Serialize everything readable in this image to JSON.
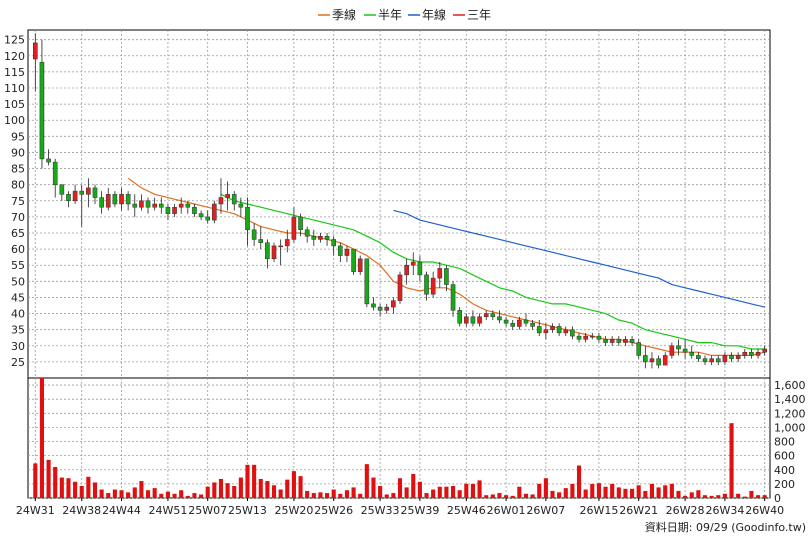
{
  "chart_data": [
    {
      "type": "candlestick",
      "title": "",
      "legend": {
        "placement": "top-center",
        "items": [
          {
            "name": "季線",
            "color": "#e07020"
          },
          {
            "name": "半年",
            "color": "#18c818"
          },
          {
            "name": "年線",
            "color": "#2060d0"
          },
          {
            "name": "三年",
            "color": "#e02020"
          }
        ]
      },
      "y_ticks": [
        25,
        30,
        35,
        40,
        45,
        50,
        55,
        60,
        65,
        70,
        75,
        80,
        85,
        90,
        95,
        100,
        105,
        110,
        115,
        120,
        125
      ],
      "ylim": [
        20,
        128
      ],
      "x_tick_labels": [
        "24W31",
        "24W38",
        "24W44",
        "24W51",
        "25W07",
        "25W13",
        "25W20",
        "25W26",
        "25W33",
        "25W39",
        "25W46",
        "26W01",
        "26W07",
        "26W15",
        "26W21",
        "26W28",
        "26W34",
        "26W40"
      ],
      "x_tick_index": [
        0,
        7,
        13,
        20,
        26,
        32,
        39,
        45,
        52,
        58,
        65,
        71,
        77,
        85,
        91,
        98,
        104,
        110
      ],
      "n_weeks": 111,
      "grid": true,
      "up_color": "#e02020",
      "down_color": "#18a818",
      "candles_ohlc": [
        [
          119,
          127,
          109,
          124
        ],
        [
          118,
          125,
          85,
          88
        ],
        [
          88,
          91,
          86,
          87
        ],
        [
          87,
          88,
          76,
          80
        ],
        [
          80,
          80,
          75,
          77
        ],
        [
          77,
          78,
          73,
          75
        ],
        [
          75,
          80,
          74,
          78
        ],
        [
          78,
          80,
          67,
          77
        ],
        [
          77,
          82,
          73,
          79
        ],
        [
          79,
          80,
          74,
          76
        ],
        [
          76,
          78,
          71,
          73
        ],
        [
          73,
          79,
          72,
          77
        ],
        [
          77,
          78,
          73,
          74
        ],
        [
          74,
          79,
          72,
          77
        ],
        [
          77,
          78,
          72,
          74
        ],
        [
          74,
          77,
          70,
          73
        ],
        [
          73,
          77,
          72,
          75
        ],
        [
          75,
          76,
          71,
          73
        ],
        [
          73,
          76,
          72,
          74
        ],
        [
          74,
          76,
          71,
          73
        ],
        [
          73,
          74,
          69,
          71
        ],
        [
          71,
          74,
          70,
          73
        ],
        [
          73,
          76,
          71,
          74
        ],
        [
          74,
          75,
          71,
          73
        ],
        [
          73,
          74,
          70,
          71
        ],
        [
          71,
          72,
          69,
          70
        ],
        [
          70,
          72,
          68,
          69
        ],
        [
          69,
          75,
          68,
          74
        ],
        [
          74,
          82,
          71,
          76
        ],
        [
          76,
          81,
          72,
          77
        ],
        [
          77,
          78,
          72,
          74
        ],
        [
          74,
          76,
          70,
          73
        ],
        [
          73,
          76,
          61,
          66
        ],
        [
          66,
          68,
          61,
          63
        ],
        [
          63,
          67,
          60,
          62
        ],
        [
          62,
          63,
          54,
          57
        ],
        [
          57,
          62,
          56,
          61
        ],
        [
          61,
          63,
          55,
          61
        ],
        [
          61,
          66,
          59,
          63
        ],
        [
          63,
          73,
          62,
          70
        ],
        [
          70,
          71,
          64,
          66
        ],
        [
          66,
          67,
          62,
          64
        ],
        [
          64,
          66,
          61,
          63
        ],
        [
          63,
          65,
          62,
          64
        ],
        [
          64,
          65,
          61,
          63
        ],
        [
          63,
          64,
          58,
          61
        ],
        [
          61,
          62,
          56,
          58
        ],
        [
          58,
          61,
          56,
          60
        ],
        [
          60,
          60,
          52,
          53
        ],
        [
          53,
          58,
          52,
          57
        ],
        [
          57,
          57,
          42,
          43
        ],
        [
          43,
          45,
          41,
          42
        ],
        [
          42,
          43,
          39,
          41
        ],
        [
          41,
          43,
          40,
          42
        ],
        [
          42,
          45,
          40,
          44
        ],
        [
          44,
          53,
          43,
          52
        ],
        [
          52,
          57,
          49,
          55
        ],
        [
          55,
          59,
          52,
          56
        ],
        [
          56,
          58,
          50,
          52
        ],
        [
          52,
          53,
          44,
          46
        ],
        [
          46,
          53,
          45,
          51
        ],
        [
          51,
          56,
          48,
          54
        ],
        [
          54,
          55,
          47,
          49
        ],
        [
          49,
          50,
          39,
          41
        ],
        [
          41,
          42,
          36,
          37
        ],
        [
          37,
          40,
          36,
          39
        ],
        [
          39,
          41,
          36,
          37
        ],
        [
          37,
          40,
          36,
          39
        ],
        [
          39,
          41,
          38,
          40
        ],
        [
          40,
          41,
          38,
          39
        ],
        [
          39,
          41,
          37,
          38
        ],
        [
          38,
          39,
          36,
          37
        ],
        [
          37,
          38,
          35,
          36
        ],
        [
          36,
          39,
          35,
          38
        ],
        [
          38,
          40,
          36,
          37
        ],
        [
          37,
          38,
          35,
          36
        ],
        [
          36,
          38,
          33,
          34
        ],
        [
          34,
          37,
          32,
          35
        ],
        [
          35,
          37,
          34,
          36
        ],
        [
          36,
          37,
          33,
          34
        ],
        [
          34,
          36,
          33,
          35
        ],
        [
          35,
          36,
          32,
          33
        ],
        [
          33,
          34,
          31,
          32
        ],
        [
          32,
          34,
          31,
          33
        ],
        [
          33,
          34,
          32,
          33
        ],
        [
          33,
          34,
          31,
          32
        ],
        [
          32,
          33,
          30,
          31
        ],
        [
          31,
          33,
          30,
          32
        ],
        [
          32,
          33,
          30,
          31
        ],
        [
          31,
          33,
          30,
          32
        ],
        [
          32,
          33,
          30,
          31
        ],
        [
          31,
          32,
          26,
          27
        ],
        [
          27,
          30,
          23,
          25
        ],
        [
          25,
          28,
          23,
          26
        ],
        [
          26,
          27,
          23,
          24
        ],
        [
          24,
          28,
          24,
          27
        ],
        [
          27,
          31,
          26,
          30
        ],
        [
          30,
          32,
          27,
          29
        ],
        [
          29,
          32,
          26,
          28
        ],
        [
          28,
          30,
          26,
          27
        ],
        [
          27,
          28,
          25,
          26
        ],
        [
          26,
          27,
          24,
          25
        ],
        [
          25,
          27,
          24,
          26
        ],
        [
          26,
          27,
          24,
          25
        ],
        [
          25,
          28,
          24,
          27
        ],
        [
          27,
          28,
          25,
          26
        ],
        [
          26,
          28,
          25,
          27
        ],
        [
          27,
          29,
          26,
          28
        ],
        [
          28,
          29,
          26,
          27
        ],
        [
          27,
          29,
          26,
          28
        ],
        [
          28,
          30,
          27,
          29
        ]
      ],
      "ma_quarter": [
        [
          14,
          82
        ],
        [
          16,
          79
        ],
        [
          18,
          77
        ],
        [
          20,
          76
        ],
        [
          22,
          75
        ],
        [
          24,
          74
        ],
        [
          26,
          73
        ],
        [
          28,
          72
        ],
        [
          30,
          71
        ],
        [
          32,
          69
        ],
        [
          34,
          67
        ],
        [
          36,
          66
        ],
        [
          38,
          65
        ],
        [
          40,
          65
        ],
        [
          42,
          64
        ],
        [
          44,
          63
        ],
        [
          46,
          62
        ],
        [
          48,
          60
        ],
        [
          50,
          58
        ],
        [
          52,
          55
        ],
        [
          54,
          50
        ],
        [
          56,
          48
        ],
        [
          58,
          47
        ],
        [
          60,
          48
        ],
        [
          62,
          48
        ],
        [
          64,
          46
        ],
        [
          66,
          43
        ],
        [
          68,
          41
        ],
        [
          70,
          40
        ],
        [
          72,
          39
        ],
        [
          74,
          38
        ],
        [
          76,
          37
        ],
        [
          78,
          36
        ],
        [
          80,
          35
        ],
        [
          82,
          34
        ],
        [
          84,
          33
        ],
        [
          86,
          32
        ],
        [
          88,
          32
        ],
        [
          90,
          31
        ],
        [
          92,
          30
        ],
        [
          94,
          29
        ],
        [
          96,
          28
        ],
        [
          98,
          28
        ],
        [
          100,
          28
        ],
        [
          102,
          27
        ],
        [
          104,
          27
        ],
        [
          106,
          27
        ],
        [
          108,
          27
        ],
        [
          110,
          28
        ]
      ],
      "ma_halfyear": [
        [
          28,
          77
        ],
        [
          30,
          75
        ],
        [
          32,
          74
        ],
        [
          34,
          73
        ],
        [
          36,
          72
        ],
        [
          38,
          71
        ],
        [
          40,
          70
        ],
        [
          42,
          69
        ],
        [
          44,
          68
        ],
        [
          46,
          67
        ],
        [
          48,
          66
        ],
        [
          50,
          64
        ],
        [
          52,
          62
        ],
        [
          54,
          59
        ],
        [
          56,
          57
        ],
        [
          58,
          56
        ],
        [
          60,
          56
        ],
        [
          62,
          55
        ],
        [
          64,
          54
        ],
        [
          66,
          52
        ],
        [
          68,
          50
        ],
        [
          70,
          48
        ],
        [
          72,
          47
        ],
        [
          74,
          45
        ],
        [
          76,
          44
        ],
        [
          78,
          43
        ],
        [
          80,
          43
        ],
        [
          82,
          42
        ],
        [
          84,
          41
        ],
        [
          86,
          40
        ],
        [
          88,
          38
        ],
        [
          90,
          37
        ],
        [
          92,
          35
        ],
        [
          94,
          34
        ],
        [
          96,
          33
        ],
        [
          98,
          32
        ],
        [
          100,
          31
        ],
        [
          102,
          31
        ],
        [
          104,
          30
        ],
        [
          106,
          30
        ],
        [
          108,
          29
        ],
        [
          110,
          29
        ]
      ],
      "ma_year": [
        [
          54,
          72
        ],
        [
          56,
          71
        ],
        [
          58,
          69
        ],
        [
          60,
          68
        ],
        [
          62,
          67
        ],
        [
          64,
          66
        ],
        [
          66,
          65
        ],
        [
          68,
          64
        ],
        [
          70,
          63
        ],
        [
          72,
          62
        ],
        [
          74,
          61
        ],
        [
          76,
          60
        ],
        [
          78,
          59
        ],
        [
          80,
          58
        ],
        [
          82,
          57
        ],
        [
          84,
          56
        ],
        [
          86,
          55
        ],
        [
          88,
          54
        ],
        [
          90,
          53
        ],
        [
          92,
          52
        ],
        [
          94,
          51
        ],
        [
          96,
          49
        ],
        [
          98,
          48
        ],
        [
          100,
          47
        ],
        [
          102,
          46
        ],
        [
          104,
          45
        ],
        [
          106,
          44
        ],
        [
          108,
          43
        ],
        [
          110,
          42
        ]
      ]
    },
    {
      "type": "bar",
      "y_ticks": [
        0,
        200,
        400,
        600,
        800,
        1000,
        1200,
        1400,
        1600
      ],
      "y_tick_labels": [
        "0",
        "200",
        "400",
        "600",
        "800",
        "1,000",
        "1,200",
        "1,400",
        "1,600"
      ],
      "ylim": [
        0,
        1700
      ],
      "color": "#e01010",
      "values": [
        490,
        1700,
        540,
        440,
        290,
        280,
        230,
        170,
        300,
        220,
        120,
        70,
        120,
        110,
        80,
        150,
        240,
        110,
        140,
        60,
        90,
        60,
        110,
        30,
        70,
        50,
        160,
        220,
        270,
        210,
        170,
        290,
        470,
        470,
        270,
        240,
        180,
        120,
        260,
        380,
        310,
        100,
        70,
        80,
        70,
        120,
        60,
        110,
        150,
        60,
        480,
        290,
        170,
        50,
        70,
        280,
        150,
        340,
        230,
        70,
        120,
        160,
        160,
        170,
        110,
        200,
        200,
        250,
        40,
        50,
        70,
        40,
        30,
        160,
        60,
        50,
        200,
        280,
        100,
        80,
        140,
        200,
        460,
        120,
        200,
        210,
        160,
        200,
        150,
        130,
        130,
        180,
        100,
        200,
        150,
        180,
        200,
        100,
        30,
        80,
        110,
        40,
        30,
        40,
        60,
        1060,
        60,
        20,
        100,
        40,
        40
      ]
    }
  ],
  "source_label": "資料日期: 09/29  (Goodinfo.tw)"
}
